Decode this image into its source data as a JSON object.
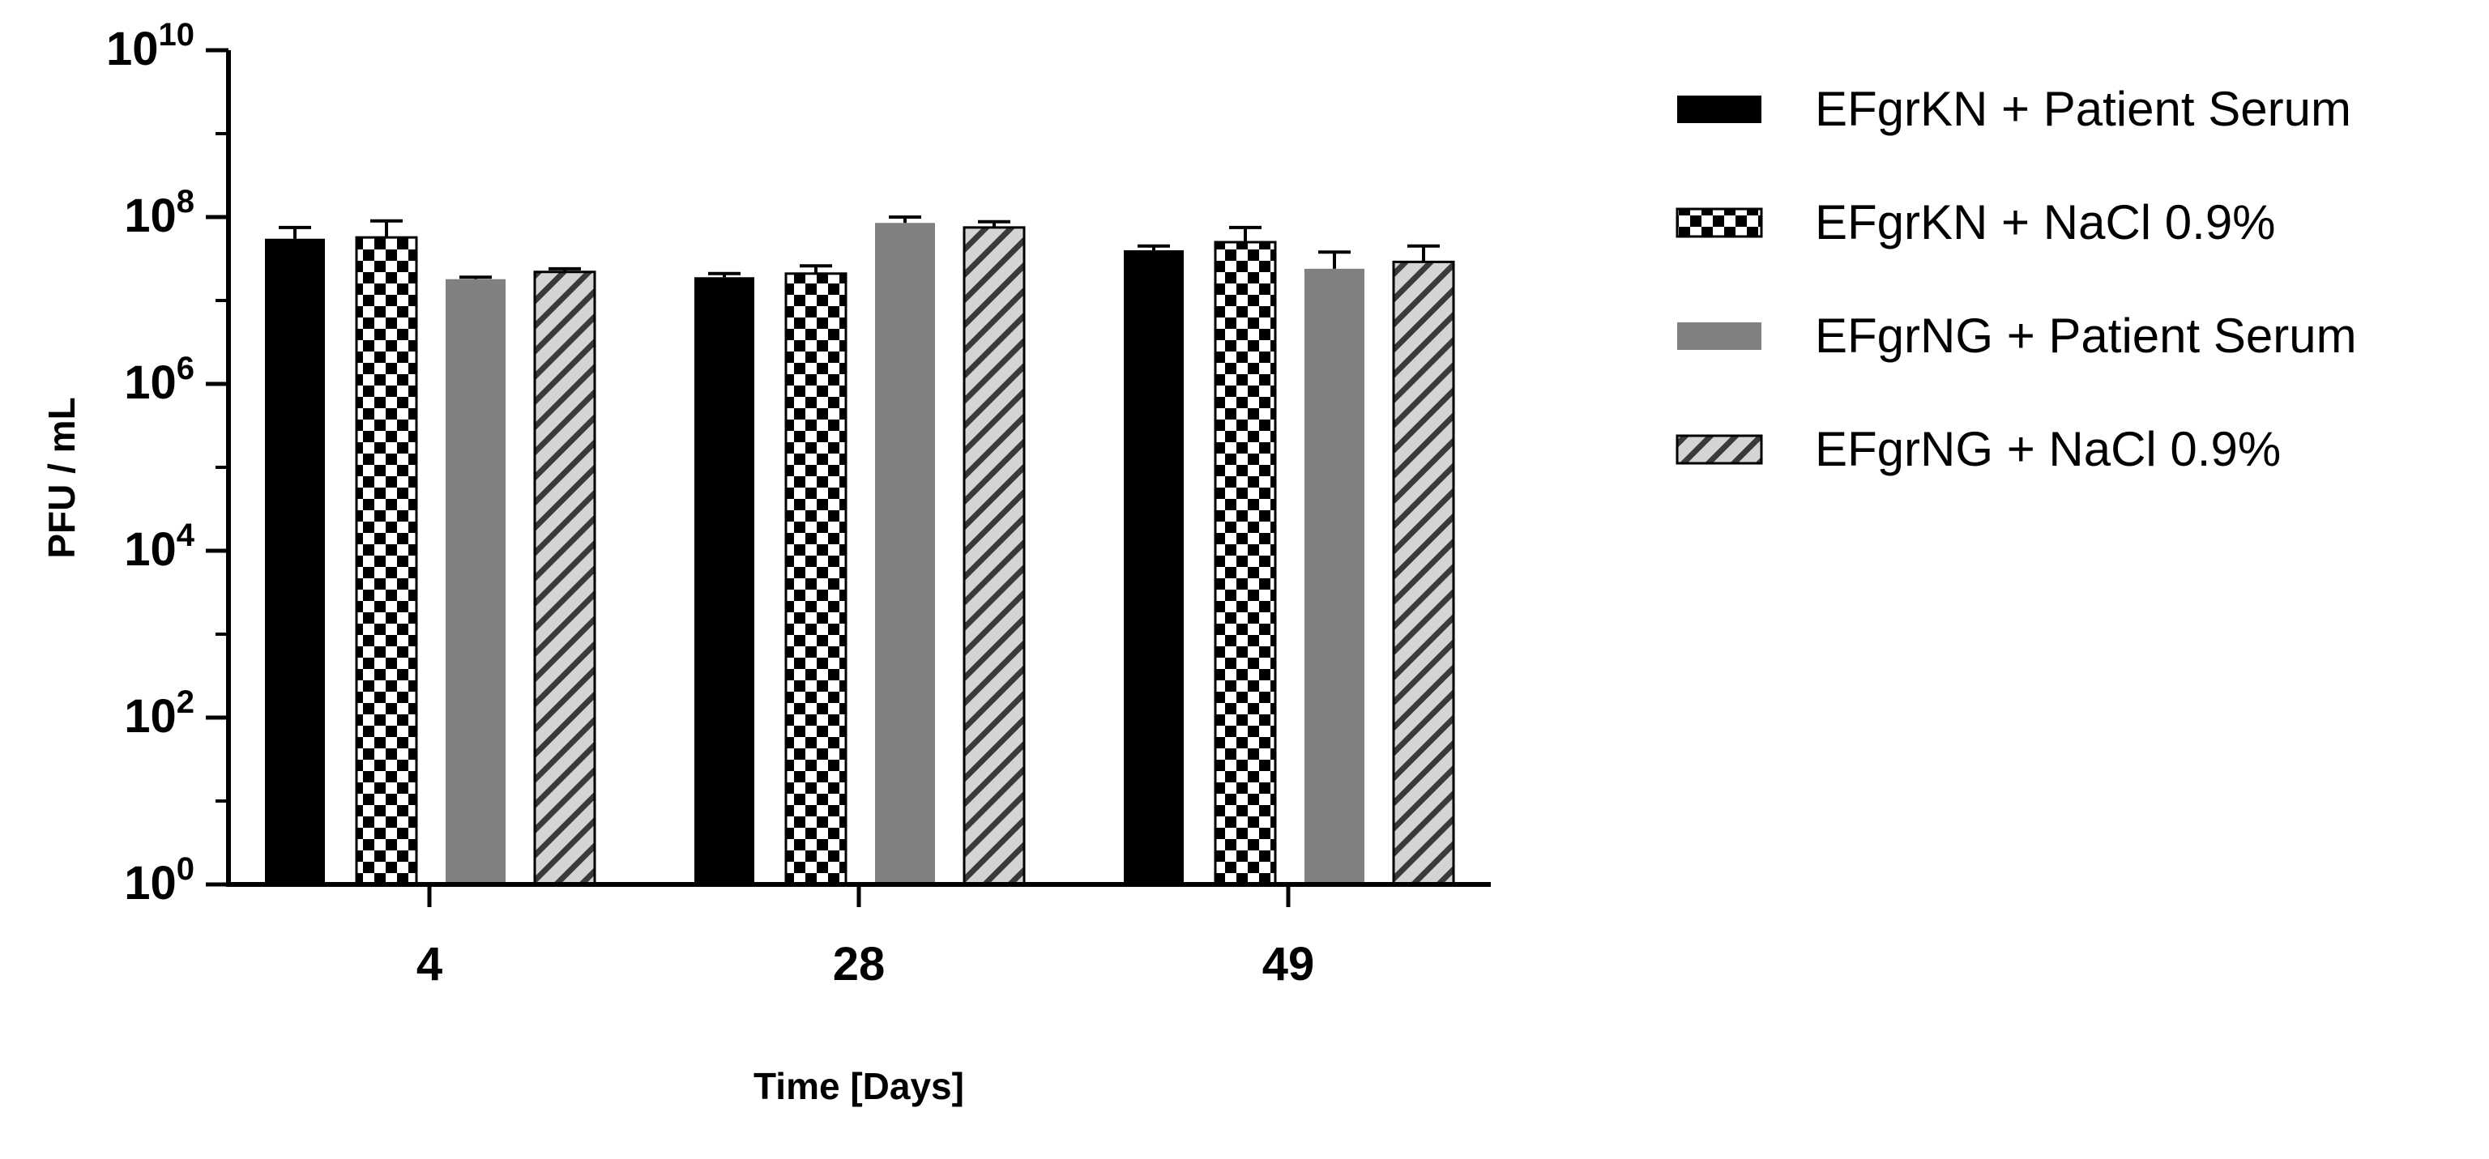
{
  "chart_data": {
    "type": "bar",
    "title": "",
    "xlabel": "Time [Days]",
    "ylabel": "PFU / mL",
    "yscale": "log",
    "ylim": [
      1,
      10000000000
    ],
    "yticks": [
      {
        "value": 1,
        "base": "10",
        "exp": "0"
      },
      {
        "value": 100,
        "base": "10",
        "exp": "2"
      },
      {
        "value": 10000,
        "base": "10",
        "exp": "4"
      },
      {
        "value": 1000000,
        "base": "10",
        "exp": "6"
      },
      {
        "value": 100000000,
        "base": "10",
        "exp": "8"
      },
      {
        "value": 10000000000,
        "base": "10",
        "exp": "10"
      }
    ],
    "categories": [
      "4",
      "28",
      "49"
    ],
    "grid": false,
    "legend_position": "right",
    "series": [
      {
        "name": "EFgrKN + Patient Serum",
        "pattern": "solid-black",
        "values": [
          55000000,
          19000000,
          40000000
        ],
        "errors": [
          75000000,
          21000000,
          45000000
        ]
      },
      {
        "name": "EFgrKN + NaCl 0.9%",
        "pattern": "checker",
        "values": [
          57000000,
          21000000,
          50000000
        ],
        "errors": [
          90000000,
          26000000,
          75000000
        ]
      },
      {
        "name": "EFgrNG + Patient Serum",
        "pattern": "solid-gray",
        "values": [
          18000000,
          85000000,
          24000000
        ],
        "errors": [
          19000000,
          100000000,
          38000000
        ]
      },
      {
        "name": "EFgrNG + NaCl 0.9%",
        "pattern": "hatched",
        "values": [
          22000000,
          75000000,
          29000000
        ],
        "errors": [
          24000000,
          88000000,
          45000000
        ]
      }
    ]
  }
}
